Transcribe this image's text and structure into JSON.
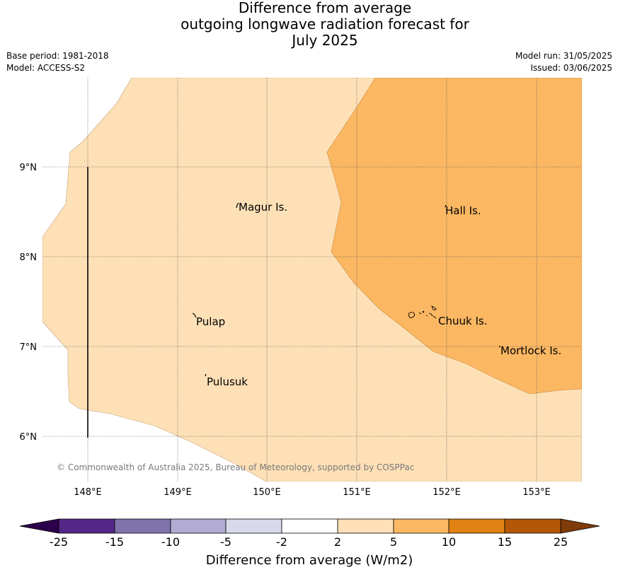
{
  "title": {
    "line1": "Difference from average",
    "line2": "outgoing longwave radiation forecast for",
    "line3": "July 2025"
  },
  "meta": {
    "base_period": "Base period: 1981-2018",
    "model": "Model: ACCESS-S2",
    "model_run": "Model run: 31/05/2025",
    "issued": "Issued: 03/06/2025"
  },
  "map": {
    "lat_labels": [
      "9°N",
      "8°N",
      "7°N",
      "6°N"
    ],
    "lon_labels": [
      "148°E",
      "149°E",
      "150°E",
      "151°E",
      "152°E",
      "153°E"
    ],
    "places": [
      "Magur Is.",
      "Hall Is.",
      "Pulap",
      "Chuuk Is.",
      "Mortlock Is.",
      "Pulusuk"
    ],
    "copyright": "© Commonwealth of Australia 2025, Bureau of Meteorology, supported by COSPPac",
    "fill_colors": {
      "2_to_5": "#fde0b6",
      "5_to_10": "#fbb762"
    }
  },
  "colorbar": {
    "ticks": [
      "-25",
      "-15",
      "-10",
      "-5",
      "-2",
      "2",
      "5",
      "10",
      "15",
      "25"
    ],
    "colors": [
      "#2d004b",
      "#542788",
      "#8073ac",
      "#b2abd2",
      "#d8daeb",
      "#ffffff",
      "#fee0b6",
      "#fdb863",
      "#e08214",
      "#b35806",
      "#7f3b08"
    ],
    "label": "Difference from average (W/m2)"
  }
}
